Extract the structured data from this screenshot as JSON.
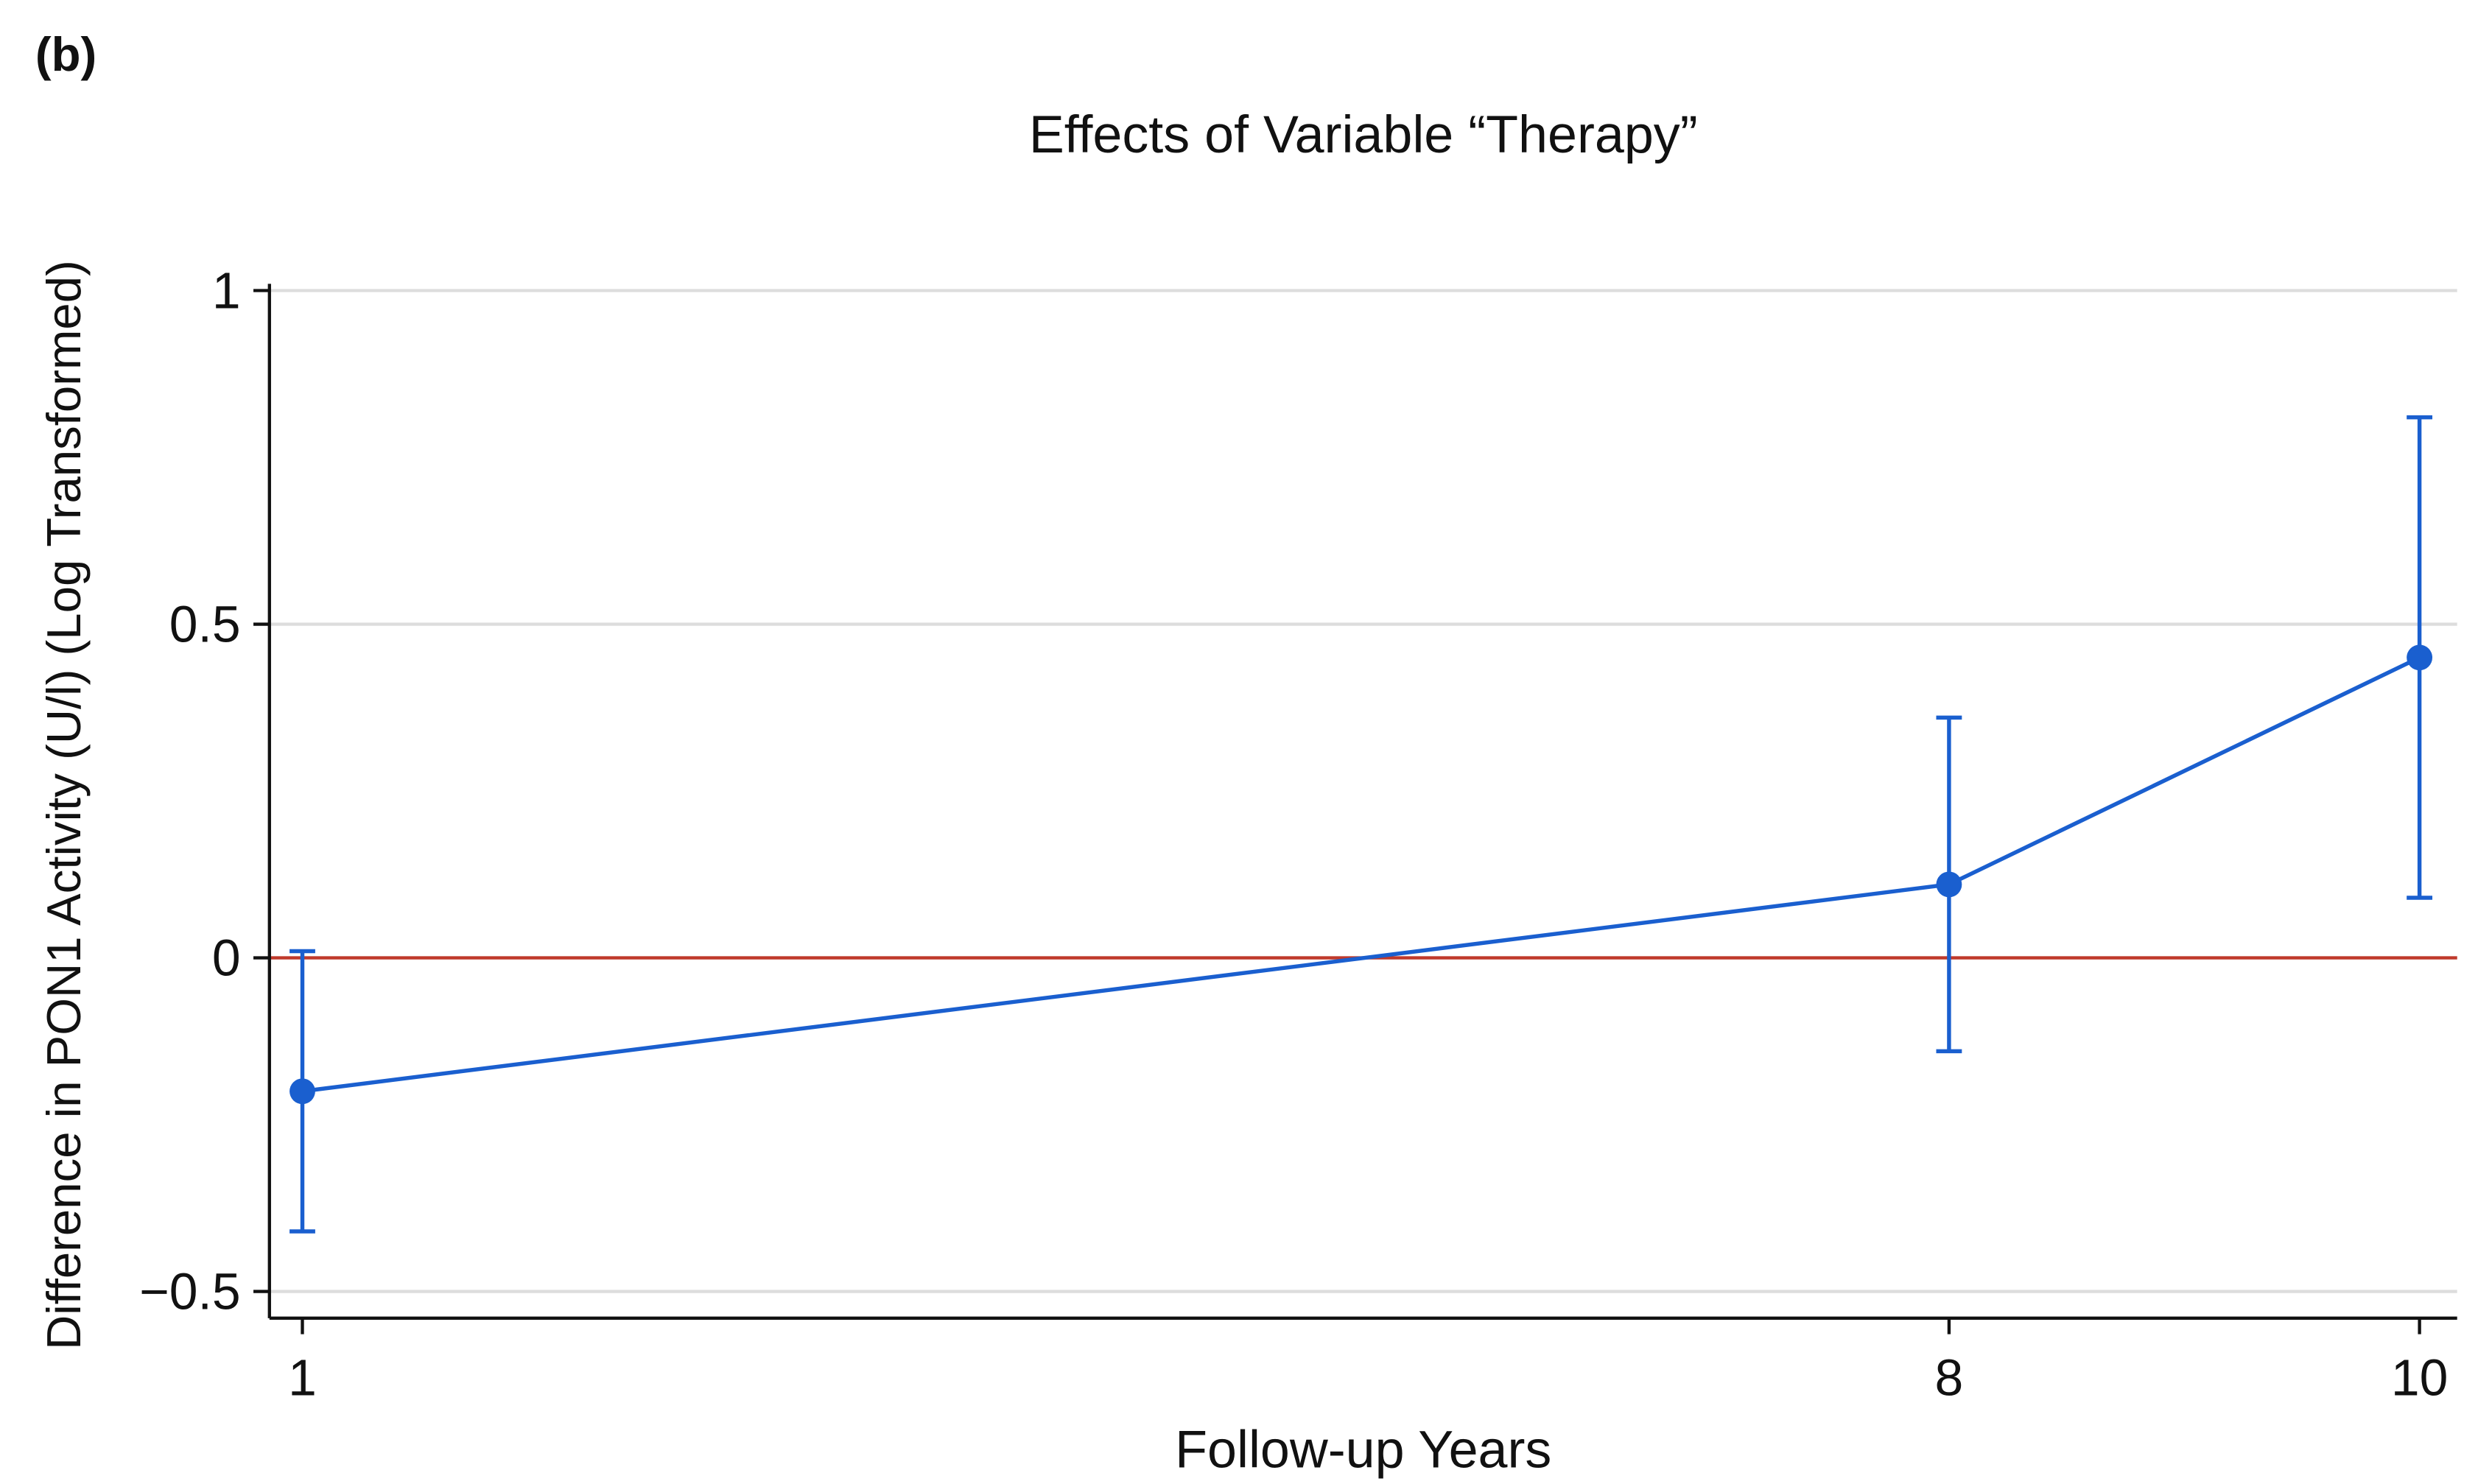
{
  "chart_data": {
    "type": "line",
    "panel_label": "(b)",
    "title": "Effects of Variable “Therapy”",
    "x_label": "Follow-up Years",
    "y_label": "Difference in PON1 Activity (U/l) (Log Transformed)",
    "x": [
      1,
      8,
      10
    ],
    "values": [
      -0.2,
      0.11,
      0.45
    ],
    "ci_low": [
      -0.41,
      -0.14,
      0.09
    ],
    "ci_high": [
      0.01,
      0.36,
      0.81
    ],
    "color": "#1a5fcf",
    "reference_line": 0,
    "reference_color": "#c0392b",
    "xlim": [
      0.86,
      10.16
    ],
    "xticks": [
      1,
      8,
      10
    ],
    "ylim": [
      -0.54,
      1.01
    ],
    "yticks": [
      {
        "value": -0.5,
        "label": "−0.5"
      },
      0,
      0.5,
      1
    ],
    "grid": true
  }
}
